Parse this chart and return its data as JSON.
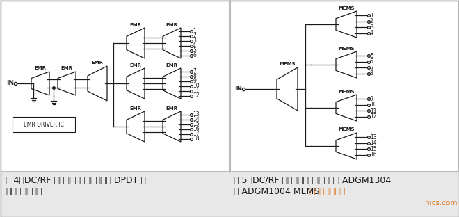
{
  "bg_color": "#e8e8e8",
  "panel_color": "#ffffff",
  "line_color": "#1a1a1a",
  "caption_left_line1": "图 4，DC/RF 扇出测试板原理图，九个 DPDT 继",
  "caption_left_line2": "电器的解决方案",
  "caption_right_line1": "图 5，DC/RF 扇出测试板原理图，五个 ADGM1304",
  "caption_right_line2_black": "或 ADGM1004 MEMS ",
  "caption_right_line2_orange": "开关的解决方案",
  "watermark": "nics.com",
  "emr_driver_label": "EMR DRIVER IC",
  "fig_width": 6.6,
  "fig_height": 3.12,
  "orange_color": "#e07820"
}
